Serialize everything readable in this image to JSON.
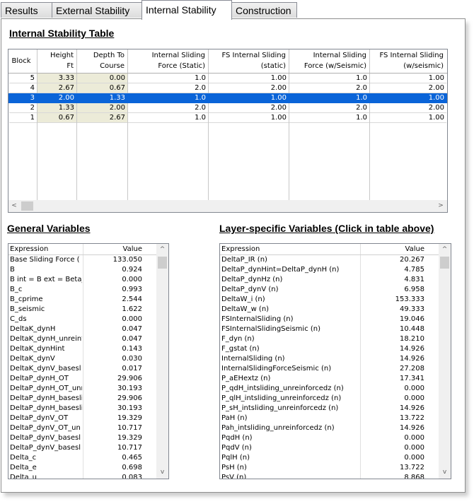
{
  "tabs": [
    "Results",
    "External Stability",
    "Internal Stability",
    "Construction"
  ],
  "internal_table": {
    "title": "Internal Stability Table",
    "headers": [
      [
        "Block"
      ],
      [
        "Height",
        "Ft"
      ],
      [
        "Depth To",
        "Course"
      ],
      [
        "Internal Sliding",
        "Force (Static)"
      ],
      [
        "FS Internal Sliding",
        "(static)"
      ],
      [
        "Internal Sliding",
        "Force (w/Seismic)"
      ],
      [
        "FS Internal Sliding",
        "(w/seismic)"
      ]
    ],
    "rows": [
      [
        "5",
        "3.33",
        "0.00",
        "1.0",
        "1.00",
        "1.0",
        "1.00"
      ],
      [
        "4",
        "2.67",
        "0.67",
        "2.0",
        "2.00",
        "2.0",
        "2.00"
      ],
      [
        "3",
        "2.00",
        "1.33",
        "1.0",
        "1.00",
        "1.0",
        "1.00"
      ],
      [
        "2",
        "1.33",
        "2.00",
        "2.0",
        "2.00",
        "2.0",
        "2.00"
      ],
      [
        "1",
        "0.67",
        "2.67",
        "1.0",
        "1.00",
        "1.0",
        "1.00"
      ]
    ]
  },
  "general_variables": {
    "title": "General Variables",
    "columns": [
      "Expression",
      "Value"
    ],
    "rows": [
      [
        " Base Sliding Force (",
        "133.050"
      ],
      [
        "B",
        "0.924"
      ],
      [
        "B int = B ext = Beta_(",
        "0.000"
      ],
      [
        "B_c",
        "0.993"
      ],
      [
        "B_cprime",
        "2.544"
      ],
      [
        "B_seismic",
        "1.622"
      ],
      [
        "C_ds",
        "0.000"
      ],
      [
        "DeltaK_dynH",
        "0.047"
      ],
      [
        "DeltaK_dynH_unreinf",
        "0.047"
      ],
      [
        "DeltaK_dynHint",
        "0.143"
      ],
      [
        "DeltaK_dynV",
        "0.030"
      ],
      [
        "DeltaK_dynV_basesl",
        "0.017"
      ],
      [
        "DeltaP_dynH_OT",
        "29.906"
      ],
      [
        "DeltaP_dynH_OT_unr",
        "30.193"
      ],
      [
        "DeltaP_dynH_basesli",
        "29.906"
      ],
      [
        "DeltaP_dynH_basesli",
        "30.193"
      ],
      [
        "DeltaP_dynV_OT",
        "19.329"
      ],
      [
        "DeltaP_dynV_OT_un",
        "10.717"
      ],
      [
        "DeltaP_dynV_basesl",
        "19.329"
      ],
      [
        "DeltaP_dynV_basesl",
        "10.717"
      ],
      [
        "Delta_c",
        "0.465"
      ],
      [
        "Delta_e",
        "0.698"
      ],
      [
        "Delta_u",
        "0.083"
      ]
    ]
  },
  "layer_variables": {
    "title": "Layer-specific Variables (Click in table above)",
    "columns": [
      "Expression",
      "Value"
    ],
    "rows": [
      [
        "DeltaP_IR (n)",
        "20.267"
      ],
      [
        "DeltaP_dynHint=DeltaP_dynH (n)",
        "4.785"
      ],
      [
        "DeltaP_dynHz (n)",
        "4.831"
      ],
      [
        "DeltaP_dynV (n)",
        "6.958"
      ],
      [
        "DeltaW_i (n)",
        "153.333"
      ],
      [
        "DeltaW_w (n)",
        "49.333"
      ],
      [
        "FSInternalSliding (n)",
        "19.046"
      ],
      [
        "FSInternalSlidingSeismic (n)",
        "10.448"
      ],
      [
        "F_dyn (n)",
        "18.210"
      ],
      [
        "F_gstat (n)",
        "14.926"
      ],
      [
        "InternalSliding (n)",
        "14.926"
      ],
      [
        "InternalSlidingForceSeismic (n)",
        "27.208"
      ],
      [
        "P_aEHextz (n)",
        "17.341"
      ],
      [
        "P_qdH_intsliding_unreinforcedz (n)",
        "0.000"
      ],
      [
        "P_qlH_intsliding_unreinforcedz (n)",
        "0.000"
      ],
      [
        "P_sH_intsliding_unreinforcedz (n)",
        "14.926"
      ],
      [
        "PaH (n)",
        "13.722"
      ],
      [
        "Pah_intsliding_unreinforcedz (n)",
        "14.926"
      ],
      [
        "PqdH (n)",
        "0.000"
      ],
      [
        "PqdV (n)",
        "0.000"
      ],
      [
        "PqlH (n)",
        "0.000"
      ],
      [
        "PsH (n)",
        "13.722"
      ],
      [
        "PsV (n)",
        "8.868"
      ]
    ]
  }
}
